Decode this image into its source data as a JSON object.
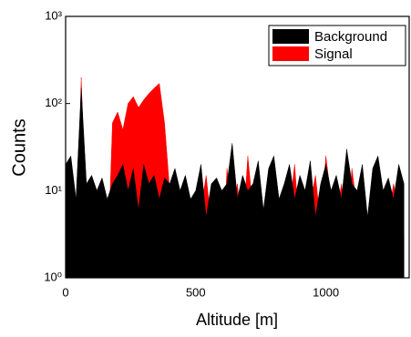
{
  "chart_data": {
    "type": "area",
    "x_label": "Altitude [m]",
    "y_label": "Counts",
    "x": [
      0,
      20,
      40,
      60,
      80,
      100,
      120,
      140,
      160,
      180,
      200,
      220,
      240,
      260,
      280,
      300,
      320,
      340,
      360,
      380,
      400,
      420,
      440,
      460,
      480,
      500,
      520,
      540,
      560,
      580,
      600,
      620,
      640,
      660,
      680,
      700,
      720,
      740,
      760,
      780,
      800,
      820,
      840,
      860,
      880,
      900,
      920,
      940,
      960,
      980,
      1000,
      1020,
      1040,
      1060,
      1080,
      1100,
      1120,
      1140,
      1160,
      1180,
      1200,
      1220,
      1240,
      1260,
      1280,
      1300
    ],
    "series": [
      {
        "name": "Background",
        "color": "#000000",
        "values": [
          20,
          25,
          8,
          150,
          12,
          15,
          10,
          14,
          8,
          12,
          15,
          20,
          10,
          18,
          6,
          20,
          12,
          15,
          8,
          14,
          12,
          18,
          10,
          15,
          8,
          10,
          20,
          5,
          12,
          14,
          10,
          12,
          35,
          8,
          15,
          10,
          12,
          22,
          6,
          18,
          25,
          8,
          12,
          20,
          8,
          15,
          10,
          22,
          5,
          12,
          20,
          10,
          15,
          8,
          30,
          12,
          10,
          20,
          5,
          18,
          25,
          10,
          14,
          8,
          20,
          12
        ]
      },
      {
        "name": "Signal",
        "color": "#ff0000",
        "values": [
          1,
          4,
          1,
          200,
          3,
          2,
          1,
          1,
          1,
          60,
          80,
          50,
          100,
          120,
          90,
          110,
          130,
          150,
          170,
          60,
          10,
          8,
          5,
          12,
          3,
          10,
          6,
          15,
          4,
          9,
          1,
          18,
          5,
          12,
          3,
          25,
          6,
          10,
          2,
          8,
          14,
          4,
          12,
          6,
          20,
          3,
          10,
          7,
          15,
          4,
          25,
          8,
          5,
          12,
          3,
          18,
          6,
          10,
          4,
          15,
          20,
          8,
          5,
          12,
          6,
          3
        ]
      }
    ],
    "xlim": [
      0,
      1320
    ],
    "xticks": [
      0,
      500,
      1000
    ],
    "ylim": [
      1,
      1000
    ],
    "log_y": true,
    "yticks": [
      {
        "value": 1,
        "label": "10⁰"
      },
      {
        "value": 10,
        "label": "10¹"
      },
      {
        "value": 100,
        "label": "10²"
      },
      {
        "value": 1000,
        "label": "10³"
      }
    ],
    "legend": "upper right"
  }
}
